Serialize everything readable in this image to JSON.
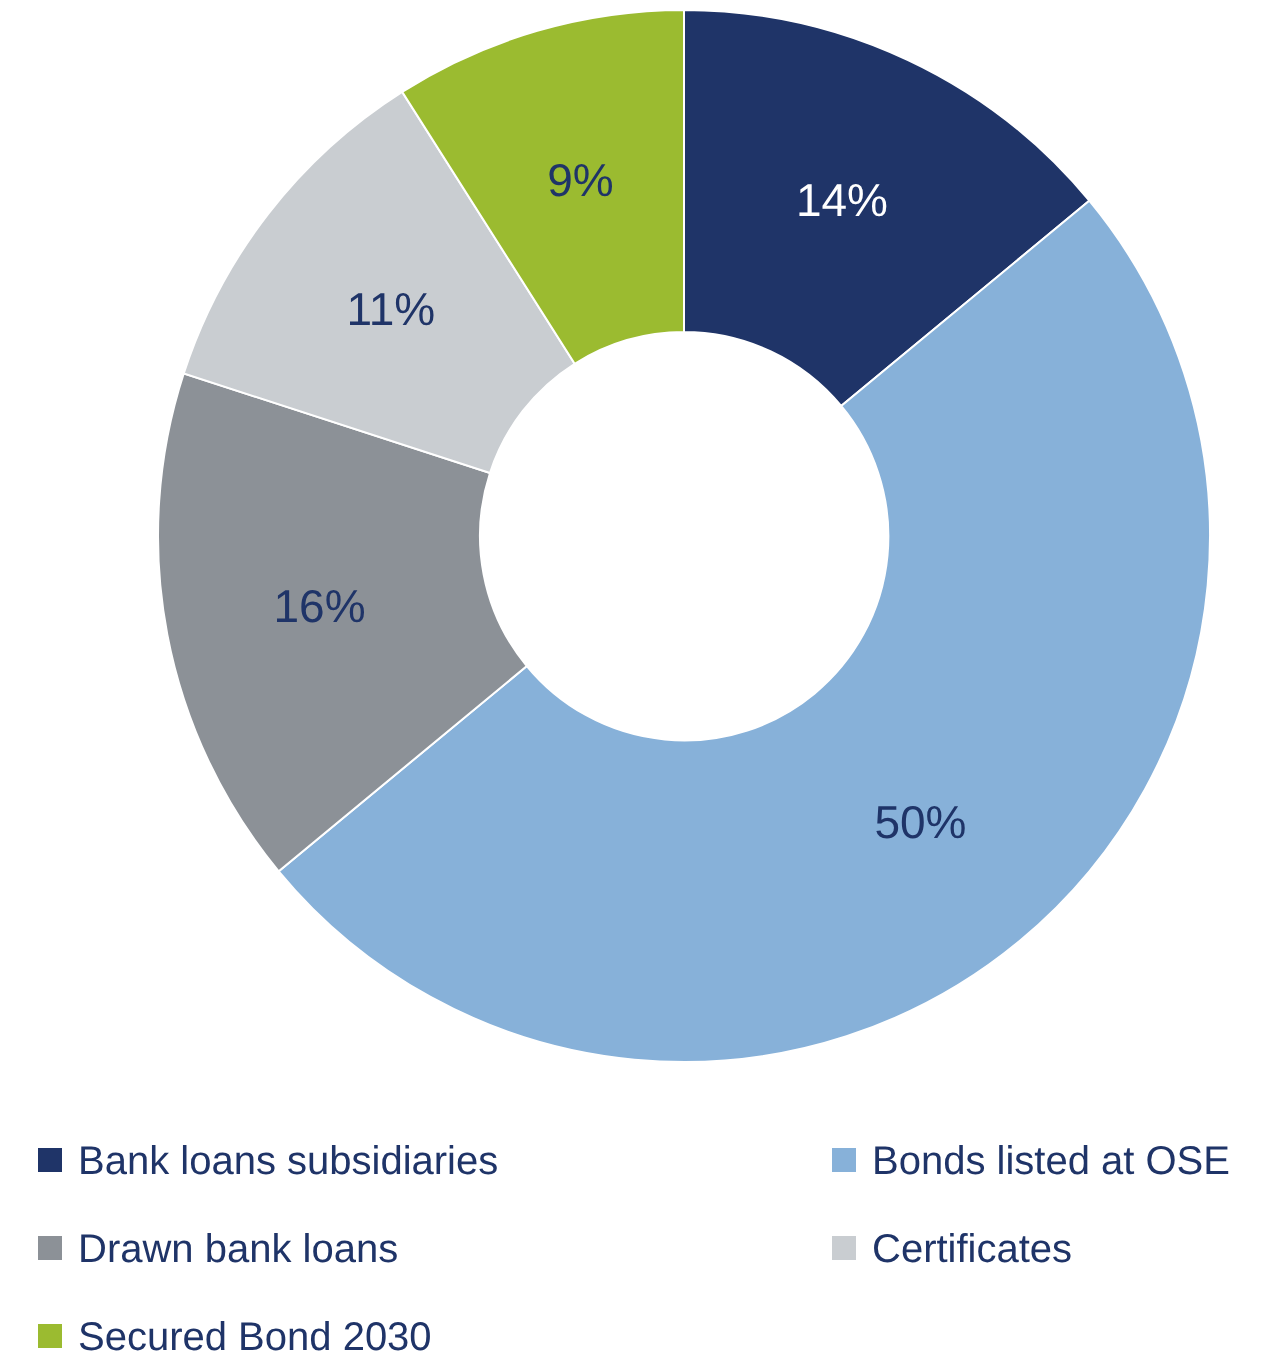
{
  "chart_data": {
    "type": "donut",
    "categories": [
      "Bank loans subsidiaries",
      "Bonds listed at OSE",
      "Drawn bank loans",
      "Certificates",
      "Secured Bond 2030"
    ],
    "values": [
      14,
      50,
      16,
      11,
      9
    ],
    "colors": [
      "#1f3468",
      "#87b1d9",
      "#8c9197",
      "#c9cdd1",
      "#9bbb30"
    ],
    "value_labels": [
      "14%",
      "50%",
      "16%",
      "11%",
      "9%"
    ],
    "legend": "bottom"
  }
}
